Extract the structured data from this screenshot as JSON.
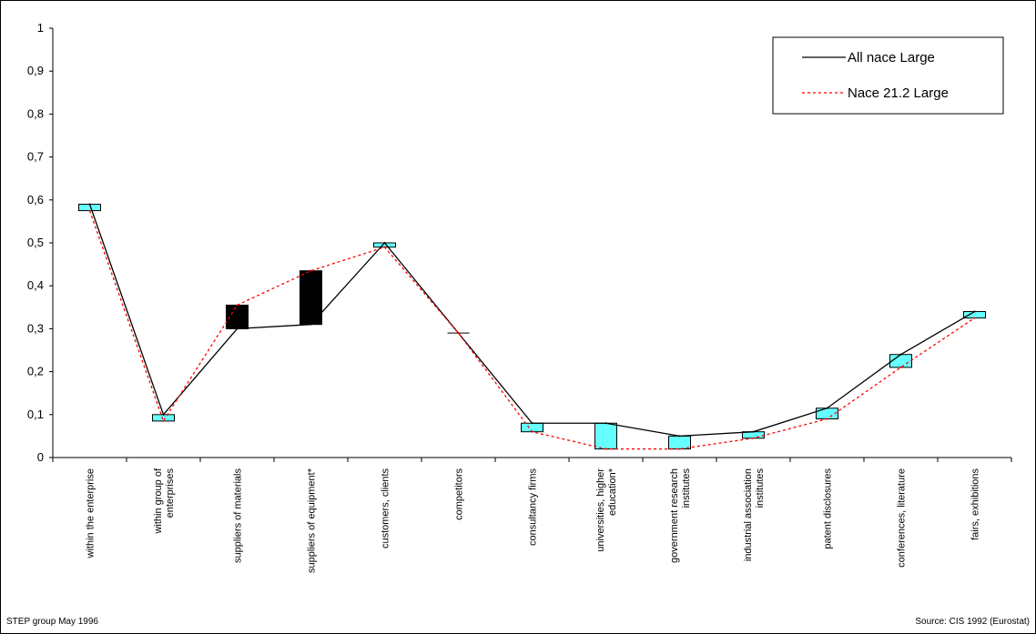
{
  "chart_data": {
    "type": "line",
    "categories": [
      [
        "within the enterprise"
      ],
      [
        "within group of",
        "enterprises"
      ],
      [
        "suppliers of materials"
      ],
      [
        "suppliers of equipment*"
      ],
      [
        "customers, clients"
      ],
      [
        "competitors"
      ],
      [
        "consultancy firms"
      ],
      [
        "universities, higher",
        "education*"
      ],
      [
        "government research",
        "institutes"
      ],
      [
        "industrial association",
        "institutes"
      ],
      [
        "patent disclosures"
      ],
      [
        "conferences, literature"
      ],
      [
        "fairs, exhibitions"
      ]
    ],
    "series": [
      {
        "name": "All nace Large",
        "values": [
          0.59,
          0.1,
          0.3,
          0.31,
          0.5,
          0.29,
          0.08,
          0.08,
          0.05,
          0.06,
          0.115,
          0.24,
          0.34
        ],
        "color": "#000000",
        "style": "solid"
      },
      {
        "name": "Nace 21.2 Large",
        "values": [
          0.575,
          0.085,
          0.355,
          0.435,
          0.49,
          0.29,
          0.06,
          0.02,
          0.02,
          0.045,
          0.09,
          0.21,
          0.325
        ],
        "color": "#ff0000",
        "style": "dotted"
      }
    ],
    "yticks": [
      "0",
      "0,1",
      "0,2",
      "0,3",
      "0,4",
      "0,5",
      "0,6",
      "0,7",
      "0,8",
      "0,9",
      "1"
    ],
    "ylim": [
      0,
      1
    ],
    "box_colors": {
      "up": "#000000",
      "down": "#66ffff"
    },
    "legend_position": "top-right",
    "grid": false
  },
  "footer": {
    "left": "STEP group May 1996",
    "right": "Source: CIS  1992 (Eurostat)"
  }
}
